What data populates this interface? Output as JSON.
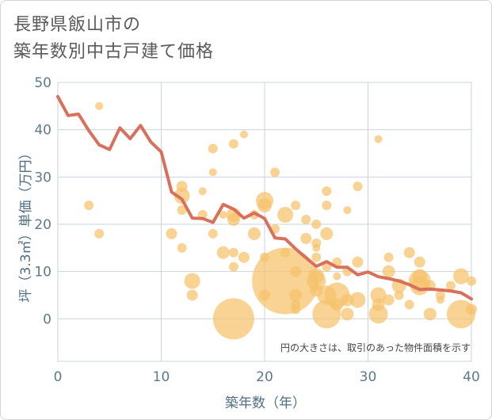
{
  "title_line1": "長野県飯山市の",
  "title_line2": "築年数別中古戸建て価格",
  "chart_data": {
    "type": "scatter",
    "xlabel": "築年数（年）",
    "ylabel": "坪（3.3㎡）単価（万円）",
    "xlim": [
      0,
      40
    ],
    "ylim": [
      -9,
      50
    ],
    "xticks": [
      0,
      10,
      20,
      30,
      40
    ],
    "yticks": [
      0,
      10,
      20,
      30,
      40,
      50
    ],
    "grid": true,
    "annotation": "円の大きさは、取引のあった物件面積を示す",
    "colors": {
      "bubble": "#f5c26b",
      "line": "#d9705c",
      "grid": "#c9d3dc",
      "axis": "#5d7a8a"
    },
    "series": [
      {
        "type": "bubble",
        "points": [
          {
            "x": 3,
            "y": 24,
            "s": 6
          },
          {
            "x": 4,
            "y": 45,
            "s": 5
          },
          {
            "x": 4,
            "y": 18,
            "s": 6
          },
          {
            "x": 11,
            "y": 18,
            "s": 7
          },
          {
            "x": 12,
            "y": 15,
            "s": 6
          },
          {
            "x": 12,
            "y": 26,
            "s": 10
          },
          {
            "x": 12,
            "y": 28,
            "s": 7
          },
          {
            "x": 12,
            "y": 23,
            "s": 6
          },
          {
            "x": 13,
            "y": 8,
            "s": 10
          },
          {
            "x": 13,
            "y": 5,
            "s": 7
          },
          {
            "x": 14,
            "y": 27,
            "s": 5
          },
          {
            "x": 14,
            "y": 22,
            "s": 6
          },
          {
            "x": 15,
            "y": 36,
            "s": 6
          },
          {
            "x": 15,
            "y": 31,
            "s": 5
          },
          {
            "x": 15,
            "y": 18,
            "s": 6
          },
          {
            "x": 16,
            "y": 22,
            "s": 5
          },
          {
            "x": 16,
            "y": 14,
            "s": 8
          },
          {
            "x": 17,
            "y": 37,
            "s": 6
          },
          {
            "x": 17,
            "y": 22,
            "s": 9
          },
          {
            "x": 17,
            "y": 21,
            "s": 8
          },
          {
            "x": 17,
            "y": 14,
            "s": 6
          },
          {
            "x": 17,
            "y": 11,
            "s": 6
          },
          {
            "x": 17,
            "y": 0,
            "s": 26
          },
          {
            "x": 18,
            "y": 39,
            "s": 5
          },
          {
            "x": 18,
            "y": 13,
            "s": 7
          },
          {
            "x": 19,
            "y": 22,
            "s": 6
          },
          {
            "x": 19,
            "y": 18,
            "s": 8
          },
          {
            "x": 20,
            "y": 25,
            "s": 11
          },
          {
            "x": 20,
            "y": 24,
            "s": 9
          },
          {
            "x": 20,
            "y": 13,
            "s": 6
          },
          {
            "x": 20,
            "y": 5,
            "s": 7
          },
          {
            "x": 21,
            "y": 31,
            "s": 6
          },
          {
            "x": 21,
            "y": 19,
            "s": 6
          },
          {
            "x": 22,
            "y": 22,
            "s": 10
          },
          {
            "x": 22,
            "y": 8,
            "s": 42
          },
          {
            "x": 22,
            "y": 14,
            "s": 6
          },
          {
            "x": 23,
            "y": 24,
            "s": 6
          },
          {
            "x": 23,
            "y": 10,
            "s": 7
          },
          {
            "x": 23,
            "y": 5,
            "s": 8
          },
          {
            "x": 23,
            "y": 3,
            "s": 6
          },
          {
            "x": 23,
            "y": 2,
            "s": 6
          },
          {
            "x": 24,
            "y": 21,
            "s": 6
          },
          {
            "x": 24,
            "y": 17,
            "s": 7
          },
          {
            "x": 25,
            "y": 20,
            "s": 6
          },
          {
            "x": 25,
            "y": 16,
            "s": 6
          },
          {
            "x": 25,
            "y": 15,
            "s": 5
          },
          {
            "x": 25,
            "y": 13,
            "s": 6
          },
          {
            "x": 25,
            "y": 9,
            "s": 10
          },
          {
            "x": 25,
            "y": 8,
            "s": 12
          },
          {
            "x": 25,
            "y": 6,
            "s": 8
          },
          {
            "x": 26,
            "y": 27,
            "s": 6
          },
          {
            "x": 26,
            "y": 24,
            "s": 6
          },
          {
            "x": 26,
            "y": 18,
            "s": 8
          },
          {
            "x": 26,
            "y": 11,
            "s": 6
          },
          {
            "x": 26,
            "y": 5,
            "s": 12
          },
          {
            "x": 26,
            "y": 1,
            "s": 18
          },
          {
            "x": 27,
            "y": 12,
            "s": 6
          },
          {
            "x": 27,
            "y": 9,
            "s": 5
          },
          {
            "x": 27,
            "y": 5,
            "s": 16
          },
          {
            "x": 27,
            "y": 3,
            "s": 8
          },
          {
            "x": 28,
            "y": 23,
            "s": 5
          },
          {
            "x": 28,
            "y": 10,
            "s": 6
          },
          {
            "x": 28,
            "y": 4,
            "s": 8
          },
          {
            "x": 28,
            "y": 1,
            "s": 8
          },
          {
            "x": 29,
            "y": 28,
            "s": 6
          },
          {
            "x": 29,
            "y": 12,
            "s": 7
          },
          {
            "x": 29,
            "y": 4,
            "s": 10
          },
          {
            "x": 31,
            "y": 38,
            "s": 5
          },
          {
            "x": 31,
            "y": 5,
            "s": 10
          },
          {
            "x": 31,
            "y": 3,
            "s": 8
          },
          {
            "x": 31,
            "y": 1,
            "s": 12
          },
          {
            "x": 32,
            "y": 13,
            "s": 6
          },
          {
            "x": 32,
            "y": 10,
            "s": 8
          },
          {
            "x": 32,
            "y": 4,
            "s": 7
          },
          {
            "x": 33,
            "y": 7,
            "s": 9
          },
          {
            "x": 33,
            "y": 5,
            "s": 6
          },
          {
            "x": 34,
            "y": 14,
            "s": 7
          },
          {
            "x": 34,
            "y": 3,
            "s": 6
          },
          {
            "x": 35,
            "y": 12,
            "s": 7
          },
          {
            "x": 35,
            "y": 9,
            "s": 9
          },
          {
            "x": 35,
            "y": 8,
            "s": 14
          },
          {
            "x": 35,
            "y": 7,
            "s": 12
          },
          {
            "x": 36,
            "y": 7,
            "s": 7
          },
          {
            "x": 36,
            "y": 1,
            "s": 8
          },
          {
            "x": 37,
            "y": 5,
            "s": 6
          },
          {
            "x": 37,
            "y": 4,
            "s": 5
          },
          {
            "x": 38,
            "y": 7,
            "s": 6
          },
          {
            "x": 39,
            "y": 9,
            "s": 10
          },
          {
            "x": 39,
            "y": 1,
            "s": 18
          },
          {
            "x": 40,
            "y": 8,
            "s": 6
          },
          {
            "x": 40,
            "y": 2,
            "s": 7
          }
        ]
      },
      {
        "type": "line",
        "x": [
          0,
          1,
          2,
          3,
          4,
          5,
          6,
          7,
          8,
          9,
          10,
          11,
          12,
          13,
          14,
          15,
          16,
          17,
          18,
          19,
          20,
          21,
          22,
          23,
          24,
          25,
          26,
          27,
          28,
          29,
          30,
          31,
          32,
          33,
          34,
          35,
          36,
          37,
          38,
          39,
          40
        ],
        "y": [
          47,
          43,
          43.3,
          39.8,
          36.8,
          35.8,
          40.4,
          38.1,
          40.9,
          37.4,
          35.3,
          26.8,
          25.3,
          21.3,
          21.2,
          20.4,
          24.2,
          23.2,
          21.3,
          22.4,
          21.2,
          17.1,
          16.9,
          14.8,
          12.9,
          11.1,
          12.1,
          10.9,
          10.9,
          9.3,
          9.9,
          8.9,
          8.5,
          8,
          7.2,
          6.2,
          6.3,
          6.1,
          5.9,
          5.5,
          4.2
        ]
      }
    ]
  }
}
